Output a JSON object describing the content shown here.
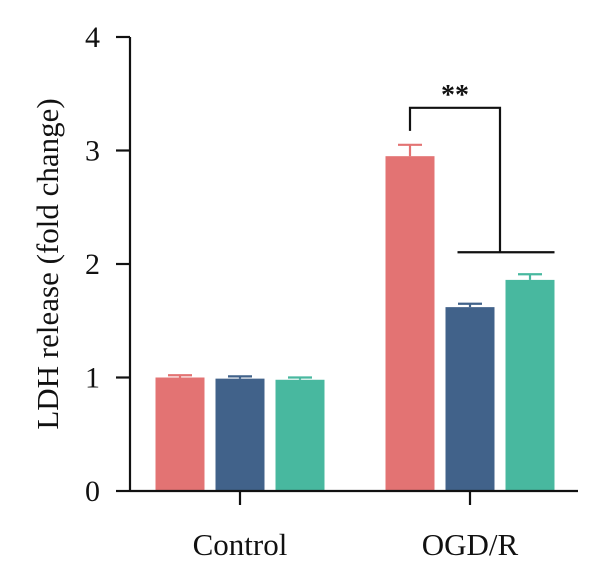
{
  "chart_data": {
    "type": "bar",
    "title": "",
    "xlabel": "",
    "ylabel": "LDH release (fold change)",
    "ylim": [
      0,
      4
    ],
    "yticks": [
      0,
      1,
      2,
      3,
      4
    ],
    "legend": "none",
    "grid": false,
    "categories": [
      "Control",
      "OGD/R"
    ],
    "series": [
      {
        "color": "#e37373",
        "values": [
          1.0,
          2.95
        ],
        "errors": [
          0.02,
          0.1
        ]
      },
      {
        "color": "#41628a",
        "values": [
          0.99,
          1.62
        ],
        "errors": [
          0.02,
          0.03
        ]
      },
      {
        "color": "#48b89f",
        "values": [
          0.98,
          1.86
        ],
        "errors": [
          0.02,
          0.05
        ]
      }
    ],
    "annotations": [
      {
        "text": "**",
        "from": {
          "category": 1,
          "series": 0
        },
        "to": {
          "category": 1,
          "series_range": [
            1,
            2
          ]
        }
      }
    ]
  }
}
